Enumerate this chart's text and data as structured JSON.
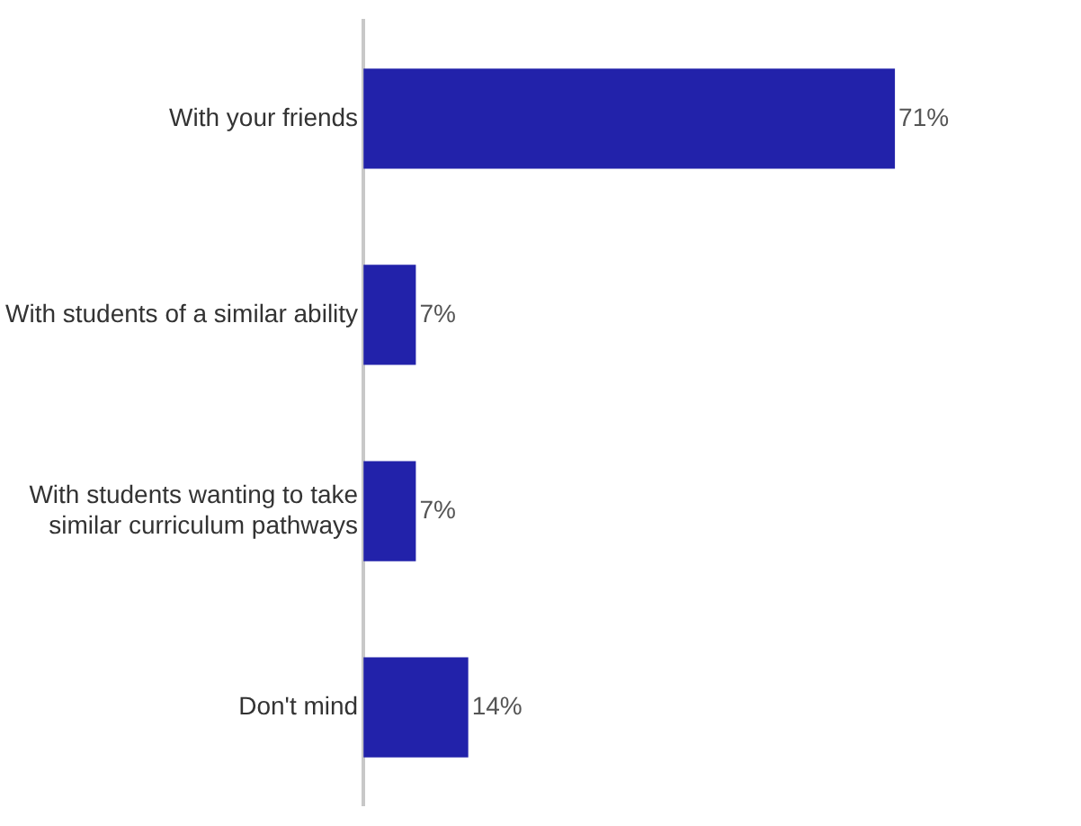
{
  "chart_data": {
    "type": "bar",
    "orientation": "horizontal",
    "categories": [
      "With your friends",
      "With students of a similar ability",
      "With students wanting to take similar curriculum pathways",
      "Don't mind"
    ],
    "values": [
      71,
      7,
      7,
      14
    ],
    "color": "#2222aa",
    "value_labels": [
      "71%",
      "7%",
      "7%",
      "14%"
    ],
    "legend": false
  }
}
